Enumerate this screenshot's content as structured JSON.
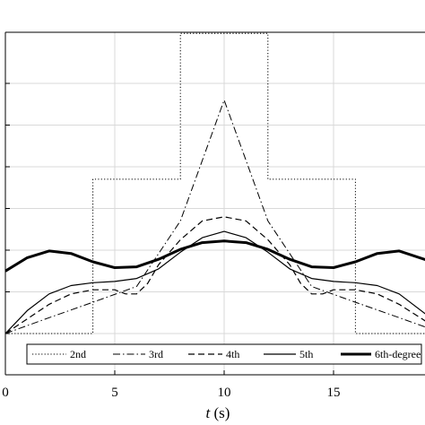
{
  "chart_data": {
    "type": "line",
    "title": "",
    "xlabel_var": "t",
    "xlabel_unit": " (s)",
    "ylabel": "",
    "xlim": [
      0,
      19.5
    ],
    "ylim": [
      -1.0,
      6.8
    ],
    "x_ticks": [
      0,
      5,
      10,
      15
    ],
    "x_tick_labels": [
      "0",
      "5",
      "10",
      "15"
    ],
    "y_gridlines": [
      0,
      1,
      2,
      3,
      4,
      5,
      6
    ],
    "grid": true,
    "legend_position": "bottom",
    "series": [
      {
        "name": "2nd",
        "style": "dotted",
        "width": 1,
        "points": [
          [
            0,
            0
          ],
          [
            4,
            0
          ],
          [
            4,
            3.7
          ],
          [
            8,
            3.7
          ],
          [
            8,
            7.2
          ],
          [
            12,
            7.2
          ],
          [
            12,
            3.7
          ],
          [
            16,
            3.7
          ],
          [
            16,
            0
          ],
          [
            19.5,
            0
          ]
        ]
      },
      {
        "name": "3rd",
        "style": "dashdot",
        "width": 1,
        "points": [
          [
            0,
            0
          ],
          [
            2,
            0.38
          ],
          [
            4,
            0.75
          ],
          [
            6,
            1.13
          ],
          [
            8,
            2.7
          ],
          [
            10,
            5.6
          ],
          [
            12,
            2.7
          ],
          [
            14,
            1.13
          ],
          [
            16,
            0.75
          ],
          [
            18,
            0.38
          ],
          [
            19.5,
            0.1
          ]
        ]
      },
      {
        "name": "4th",
        "style": "dashed",
        "width": 1.2,
        "points": [
          [
            0,
            0
          ],
          [
            1,
            0.35
          ],
          [
            2,
            0.7
          ],
          [
            3,
            0.95
          ],
          [
            4,
            1.05
          ],
          [
            5,
            1.05
          ],
          [
            5.5,
            0.95
          ],
          [
            6,
            0.95
          ],
          [
            6.5,
            1.2
          ],
          [
            7,
            1.65
          ],
          [
            8,
            2.25
          ],
          [
            9,
            2.7
          ],
          [
            10,
            2.8
          ],
          [
            11,
            2.7
          ],
          [
            12,
            2.25
          ],
          [
            13,
            1.65
          ],
          [
            13.5,
            1.2
          ],
          [
            14,
            0.95
          ],
          [
            14.5,
            0.95
          ],
          [
            15,
            1.05
          ],
          [
            16,
            1.05
          ],
          [
            17,
            0.95
          ],
          [
            18,
            0.7
          ],
          [
            19.5,
            0.2
          ]
        ]
      },
      {
        "name": "5th",
        "style": "solid",
        "width": 1.2,
        "points": [
          [
            0,
            0
          ],
          [
            1,
            0.55
          ],
          [
            2,
            0.95
          ],
          [
            3,
            1.15
          ],
          [
            4,
            1.22
          ],
          [
            5,
            1.25
          ],
          [
            6,
            1.32
          ],
          [
            7,
            1.55
          ],
          [
            8,
            1.95
          ],
          [
            9,
            2.3
          ],
          [
            10,
            2.45
          ],
          [
            11,
            2.3
          ],
          [
            12,
            1.95
          ],
          [
            13,
            1.55
          ],
          [
            14,
            1.32
          ],
          [
            15,
            1.25
          ],
          [
            16,
            1.22
          ],
          [
            17,
            1.15
          ],
          [
            18,
            0.95
          ],
          [
            19.5,
            0.35
          ]
        ]
      },
      {
        "name": "6th-degree",
        "style": "solid",
        "width": 3,
        "points": [
          [
            0,
            1.5
          ],
          [
            1,
            1.82
          ],
          [
            2,
            1.98
          ],
          [
            3,
            1.92
          ],
          [
            4,
            1.72
          ],
          [
            5,
            1.58
          ],
          [
            6,
            1.6
          ],
          [
            7,
            1.78
          ],
          [
            8,
            2.02
          ],
          [
            9,
            2.18
          ],
          [
            10,
            2.22
          ],
          [
            11,
            2.18
          ],
          [
            12,
            2.02
          ],
          [
            13,
            1.78
          ],
          [
            14,
            1.6
          ],
          [
            15,
            1.58
          ],
          [
            16,
            1.72
          ],
          [
            17,
            1.92
          ],
          [
            18,
            1.98
          ],
          [
            19.5,
            1.72
          ]
        ]
      }
    ]
  }
}
